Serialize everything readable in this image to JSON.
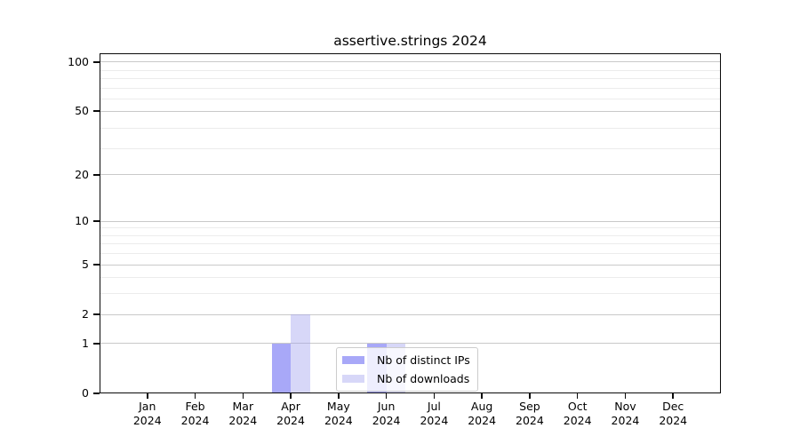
{
  "title": "assertive.strings 2024",
  "chart_data": {
    "type": "bar",
    "title": "assertive.strings 2024",
    "categories": [
      "Jan",
      "Feb",
      "Mar",
      "Apr",
      "May",
      "Jun",
      "Jul",
      "Aug",
      "Sep",
      "Oct",
      "Nov",
      "Dec"
    ],
    "x_year": "2024",
    "series": [
      {
        "name": "Nb of distinct IPs",
        "color": "rgba(121,121,245,0.65)",
        "color_hex_effective": "#a8a8f8",
        "values": [
          0,
          0,
          0,
          1,
          0,
          1,
          0,
          0,
          0,
          0,
          0,
          0
        ]
      },
      {
        "name": "Nb of downloads",
        "color": "rgba(160,160,238,0.42)",
        "color_hex_effective": "#dadaf8",
        "values": [
          0,
          0,
          0,
          2,
          0,
          1,
          0,
          0,
          0,
          0,
          0,
          0
        ]
      }
    ],
    "y_ticks": [
      0,
      1,
      2,
      5,
      10,
      20,
      50,
      100
    ],
    "scale": "log1p",
    "ylim": [
      0,
      113
    ],
    "grid": true,
    "legend_position": "lower center",
    "legend_labels": [
      "Nb of distinct IPs",
      "Nb of downloads"
    ]
  }
}
